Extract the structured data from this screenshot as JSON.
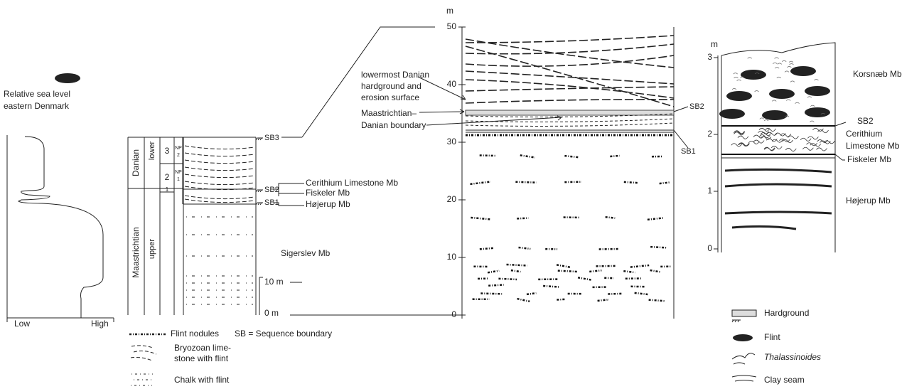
{
  "sea_level": {
    "title": [
      "Relative sea level",
      "eastern Denmark"
    ],
    "low": "Low",
    "high": "High"
  },
  "section": {
    "stages": [
      "Danian",
      "Maastrichtian"
    ],
    "substages": [
      "lower",
      "upper"
    ],
    "zones": [
      "3",
      "2",
      "1"
    ],
    "nannofossil_zones": [
      [
        "NP",
        "2"
      ],
      [
        "NP",
        "1"
      ]
    ],
    "boundaries": [
      "SB3",
      "SB2",
      "SB1"
    ],
    "members": [
      "Cerithium Limestone Mb",
      "Fiskeler Mb",
      "Højerup Mb",
      "Sigerslev Mb"
    ],
    "scale": [
      "10 m",
      "0 m"
    ]
  },
  "legend_left": {
    "items": [
      [
        "Flint nodules"
      ],
      [
        "Bryozoan lime-",
        "stone with flint"
      ],
      [
        "Chalk with flint"
      ]
    ],
    "note": "SB = Sequence boundary"
  },
  "detail_section": {
    "unit": "m",
    "ticks": [
      0,
      10,
      20,
      30,
      40,
      50
    ],
    "annotations": [
      [
        "lowermost Danian",
        "hardground and",
        "erosion surface"
      ],
      [
        "Maastrichtian–",
        "Danian boundary"
      ]
    ],
    "boundaries": [
      "SB2",
      "SB1"
    ]
  },
  "close_up": {
    "unit": "m",
    "ticks": [
      0,
      1,
      2,
      3
    ],
    "members": [
      [
        "Korsnæb Mb"
      ],
      [
        "Cerithium",
        "Limestone Mb"
      ],
      [
        "Fiskeler Mb"
      ],
      [
        "Højerup Mb"
      ]
    ],
    "boundary": "SB2"
  },
  "legend_right": [
    "Hardground",
    "Flint",
    "Thalassinoides",
    "Clay seam"
  ]
}
